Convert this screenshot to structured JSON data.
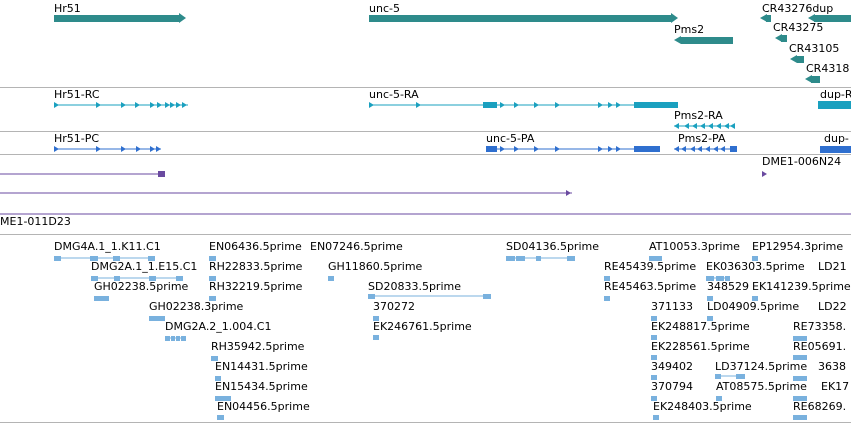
{
  "colors": {
    "gene": "#2e8b8b",
    "transcript_ra": "#1aa0bf",
    "transcript_pa": "#2f6fcf",
    "clone": "#6a4aa0",
    "est": "#79b1de",
    "separator": "#b4b4b4"
  },
  "gene_track": {
    "features": [
      {
        "id": "hr51",
        "label": "Hr51"
      },
      {
        "id": "unc5",
        "label": "unc-5"
      },
      {
        "id": "pms2",
        "label": "Pms2"
      },
      {
        "id": "cr43276dup",
        "label": "CR43276dup"
      },
      {
        "id": "cr43275",
        "label": "CR43275"
      },
      {
        "id": "cr43105",
        "label": "CR43105"
      },
      {
        "id": "cr4318",
        "label": "CR4318"
      }
    ]
  },
  "ra_track": {
    "features": [
      {
        "id": "hr51rc",
        "label": "Hr51-RC"
      },
      {
        "id": "unc5ra",
        "label": "unc-5-RA"
      },
      {
        "id": "pms2ra",
        "label": "Pms2-RA"
      },
      {
        "id": "dupr",
        "label": "dup-R"
      }
    ]
  },
  "pa_track": {
    "features": [
      {
        "id": "hr51pc",
        "label": "Hr51-PC"
      },
      {
        "id": "unc5pa",
        "label": "unc-5-PA"
      },
      {
        "id": "pms2pa",
        "label": "Pms2-PA"
      },
      {
        "id": "dupp",
        "label": "dup-"
      }
    ]
  },
  "clone_track": {
    "features": [
      {
        "id": "dme1_006n24",
        "label": "DME1-006N24"
      },
      {
        "id": "dme1_011d23",
        "label": "ME1-011D23"
      }
    ]
  },
  "est_track": {
    "features": [
      {
        "id": "e1",
        "label": "DMG4A.1_1.K11.C1"
      },
      {
        "id": "e2",
        "label": "DMG2A.1_1.E15.C1"
      },
      {
        "id": "e3",
        "label": "GH02238.5prime"
      },
      {
        "id": "e4",
        "label": "GH02238.3prime"
      },
      {
        "id": "e5",
        "label": "DMG2A.2_1.004.C1"
      },
      {
        "id": "e6",
        "label": "EN06436.5prime"
      },
      {
        "id": "e7",
        "label": "RH22833.5prime"
      },
      {
        "id": "e8",
        "label": "RH32219.5prime"
      },
      {
        "id": "e9",
        "label": "RH35942.5prime"
      },
      {
        "id": "e10",
        "label": "EN14431.5prime"
      },
      {
        "id": "e11",
        "label": "EN15434.5prime"
      },
      {
        "id": "e12",
        "label": "EN04456.5prime"
      },
      {
        "id": "e13",
        "label": "EN07246.5prime"
      },
      {
        "id": "e14",
        "label": "GH11860.5prime"
      },
      {
        "id": "e15",
        "label": "SD20833.5prime"
      },
      {
        "id": "e16",
        "label": "370272"
      },
      {
        "id": "e17",
        "label": "EK246761.5prime"
      },
      {
        "id": "e18",
        "label": "SD04136.5prime"
      },
      {
        "id": "e19",
        "label": "RE45439.5prime"
      },
      {
        "id": "e20",
        "label": "RE45463.5prime"
      },
      {
        "id": "e21",
        "label": "AT10053.3prime"
      },
      {
        "id": "e22",
        "label": "371133"
      },
      {
        "id": "e23",
        "label": "EK248817.5prime"
      },
      {
        "id": "e24",
        "label": "EK228561.5prime"
      },
      {
        "id": "e25",
        "label": "349402"
      },
      {
        "id": "e26",
        "label": "370794"
      },
      {
        "id": "e27",
        "label": "EK248403.5prime"
      },
      {
        "id": "e28",
        "label": "EK036303.5prime"
      },
      {
        "id": "e29",
        "label": "348529"
      },
      {
        "id": "e30",
        "label": "LD04909.5prime"
      },
      {
        "id": "e31",
        "label": "LD37124.5prime"
      },
      {
        "id": "e32",
        "label": "AT08575.5prime"
      },
      {
        "id": "e33",
        "label": "EP12954.3prime"
      },
      {
        "id": "e34",
        "label": "EK141239.5prime"
      },
      {
        "id": "e35",
        "label": "LD21"
      },
      {
        "id": "e36",
        "label": "LD22"
      },
      {
        "id": "e37",
        "label": "RE73358."
      },
      {
        "id": "e38",
        "label": "RE05691."
      },
      {
        "id": "e39",
        "label": "3638"
      },
      {
        "id": "e40",
        "label": "EK17"
      },
      {
        "id": "e41",
        "label": "RE68269."
      }
    ]
  }
}
